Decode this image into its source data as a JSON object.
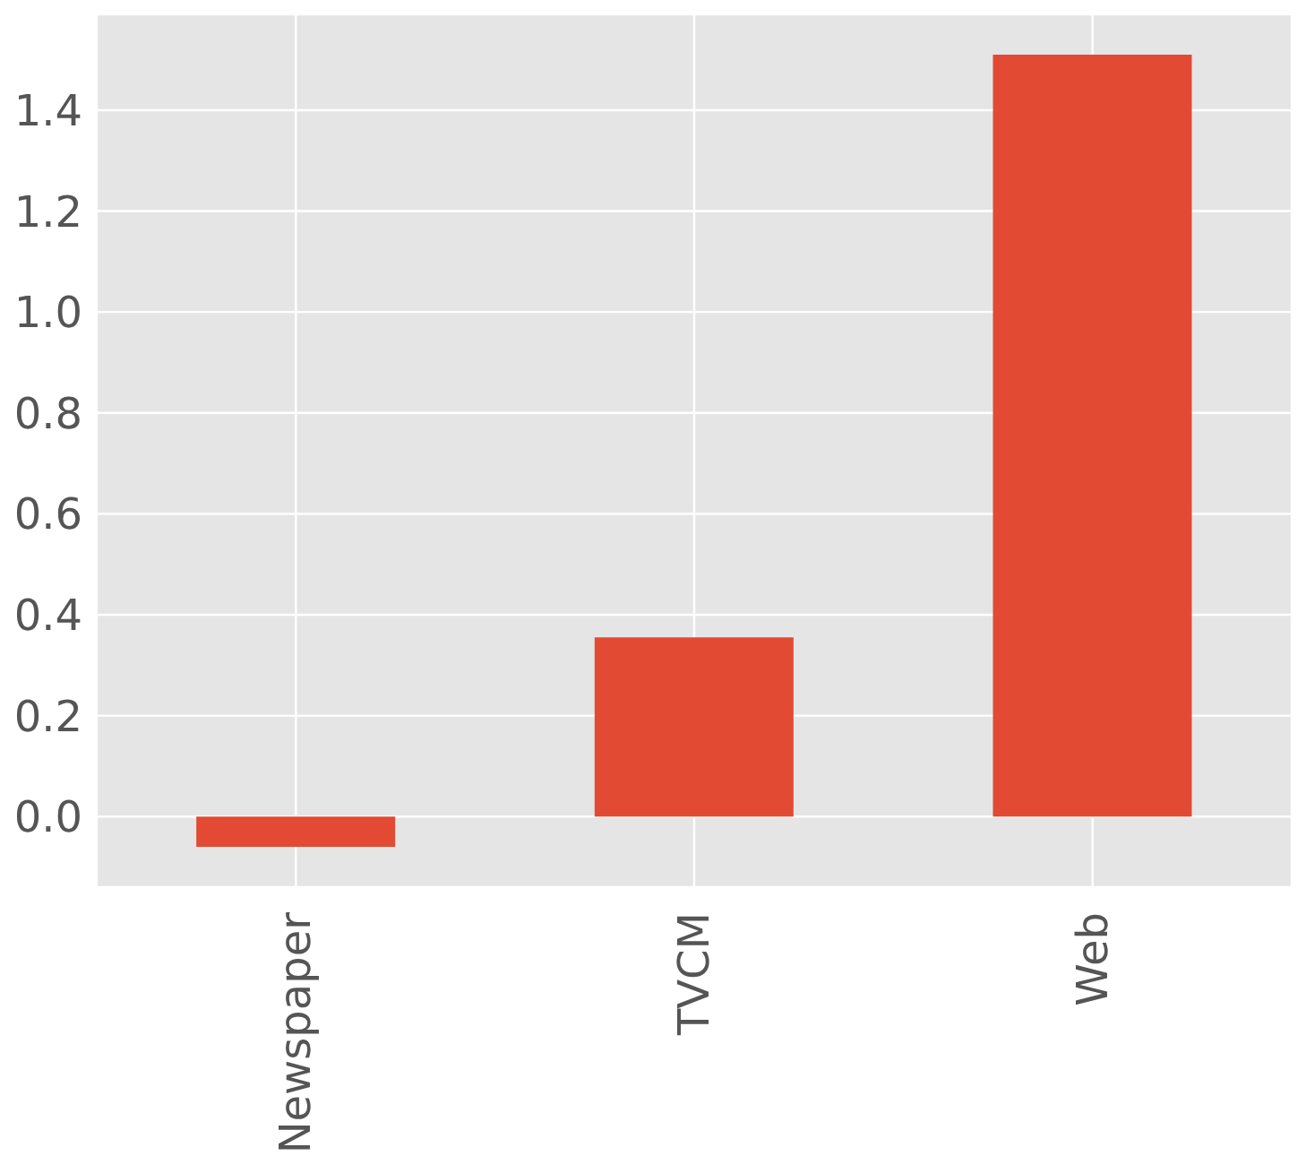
{
  "chart_data": {
    "type": "bar",
    "categories": [
      "Newspaper",
      "TVCM",
      "Web"
    ],
    "values": [
      -0.06,
      0.355,
      1.51
    ],
    "color": "#e24a33",
    "ylim": [
      -0.14,
      1.59
    ],
    "yticks": [
      {
        "value": 0,
        "label": "0.0"
      },
      {
        "value": 0.2,
        "label": "0.2"
      },
      {
        "value": 0.4,
        "label": "0.4"
      },
      {
        "value": 0.6,
        "label": "0.6"
      },
      {
        "value": 0.8,
        "label": "0.8"
      },
      {
        "value": 1,
        "label": "1.0"
      },
      {
        "value": 1.2,
        "label": "1.2"
      },
      {
        "value": 1.4,
        "label": "1.4"
      }
    ],
    "grid": true
  }
}
